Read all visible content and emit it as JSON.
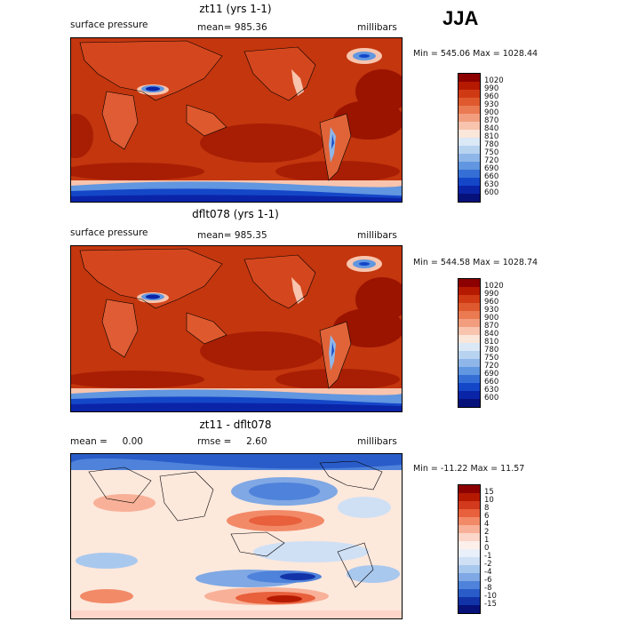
{
  "season": "JJA",
  "panels": [
    {
      "title": "zt11 (yrs 1-1)",
      "left_label": "surface pressure",
      "center_label": "mean= 985.36",
      "right_label": "millibars",
      "min_max": "Min = 545.06 Max = 1028.44",
      "colorbar_labels": [
        "1020",
        "990",
        "960",
        "930",
        "900",
        "870",
        "840",
        "810",
        "780",
        "750",
        "720",
        "690",
        "660",
        "630",
        "600"
      ],
      "colorbar_colors": [
        "#8c0000",
        "#b51a00",
        "#cf3a14",
        "#de5a2e",
        "#ea7a52",
        "#f29e7e",
        "#f8c4ad",
        "#fbe6da",
        "#dbe8f6",
        "#b8d3f0",
        "#8fb6e8",
        "#6196e0",
        "#356fd6",
        "#1446c8",
        "#0a24a8",
        "#06117a"
      ]
    },
    {
      "title": "dflt078 (yrs 1-1)",
      "left_label": "surface pressure",
      "center_label": "mean= 985.35",
      "right_label": "millibars",
      "min_max": "Min = 544.58 Max = 1028.74",
      "colorbar_labels": [
        "1020",
        "990",
        "960",
        "930",
        "900",
        "870",
        "840",
        "810",
        "780",
        "750",
        "720",
        "690",
        "660",
        "630",
        "600"
      ],
      "colorbar_colors": [
        "#8c0000",
        "#b51a00",
        "#cf3a14",
        "#de5a2e",
        "#ea7a52",
        "#f29e7e",
        "#f8c4ad",
        "#fbe6da",
        "#dbe8f6",
        "#b8d3f0",
        "#8fb6e8",
        "#6196e0",
        "#356fd6",
        "#1446c8",
        "#0a24a8",
        "#06117a"
      ]
    },
    {
      "title": "zt11 - dflt078",
      "left_label": "mean =     0.00",
      "center_label": "rmse =     2.60",
      "right_label": "millibars",
      "min_max": "Min = -11.22 Max =   11.57",
      "colorbar_labels": [
        "15",
        "10",
        "8",
        "6",
        "4",
        "2",
        "1",
        "0",
        "-1",
        "-2",
        "-4",
        "-6",
        "-8",
        "-10",
        "-15"
      ],
      "colorbar_colors": [
        "#8c0000",
        "#b51a00",
        "#d23a1e",
        "#e8603c",
        "#f28a68",
        "#f8b198",
        "#fcd6c8",
        "#fdf0ea",
        "#e9f0fa",
        "#cfe0f5",
        "#a9c8ee",
        "#7fa8e4",
        "#4f82da",
        "#2a5cc9",
        "#1233a8",
        "#06117a"
      ]
    }
  ]
}
